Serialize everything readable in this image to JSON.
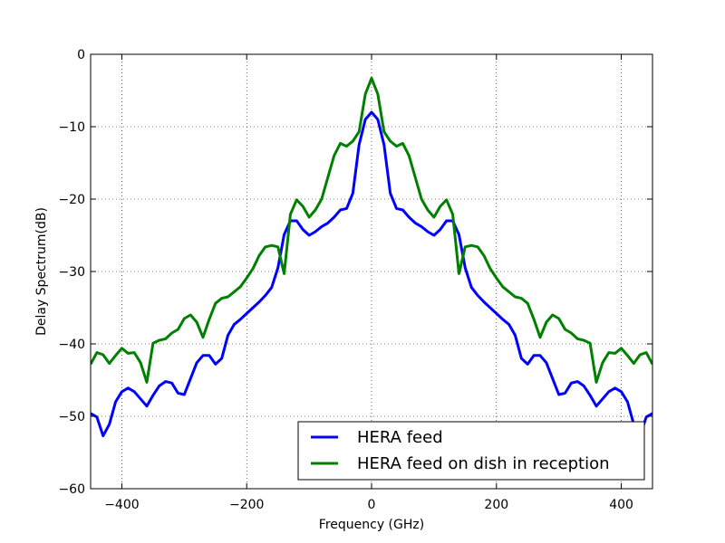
{
  "chart_data": {
    "type": "line",
    "title": "",
    "xlabel": "Frequency (GHz)",
    "ylabel": "Delay Spectrum(dB)",
    "xlim": [
      -450,
      450
    ],
    "ylim": [
      -60,
      0
    ],
    "x_ticks": [
      -400,
      -200,
      0,
      200,
      400
    ],
    "x_tick_labels": [
      "−400",
      "−200",
      "0",
      "200",
      "400"
    ],
    "y_ticks": [
      0,
      -10,
      -20,
      -30,
      -40,
      -50,
      -60
    ],
    "y_tick_labels": [
      "0",
      "−10",
      "−20",
      "−30",
      "−40",
      "−50",
      "−60"
    ],
    "grid": true,
    "legend_position": "bottom-right",
    "series": [
      {
        "name": "HERA feed",
        "color": "#0000ff",
        "x": [
          -450,
          -440,
          -430,
          -420,
          -410,
          -400,
          -390,
          -380,
          -370,
          -360,
          -350,
          -340,
          -330,
          -320,
          -310,
          -300,
          -290,
          -280,
          -270,
          -260,
          -250,
          -240,
          -230,
          -220,
          -210,
          -200,
          -190,
          -180,
          -170,
          -160,
          -150,
          -140,
          -130,
          -120,
          -110,
          -100,
          -90,
          -80,
          -70,
          -60,
          -50,
          -40,
          -30,
          -20,
          -10,
          0,
          10,
          20,
          30,
          40,
          50,
          60,
          70,
          80,
          90,
          100,
          110,
          120,
          130,
          140,
          150,
          160,
          170,
          180,
          190,
          200,
          210,
          220,
          230,
          240,
          250,
          260,
          270,
          280,
          290,
          300,
          310,
          320,
          330,
          340,
          350,
          360,
          370,
          380,
          390,
          400,
          410,
          420,
          430,
          440,
          450
        ],
        "y": [
          -49.6,
          -50.1,
          -52.7,
          -51.1,
          -48,
          -46.6,
          -46.1,
          -46.6,
          -47.6,
          -48.6,
          -47.1,
          -45.8,
          -45.2,
          -45.4,
          -46.8,
          -47,
          -44.8,
          -42.6,
          -41.6,
          -41.6,
          -42.8,
          -42,
          -38.8,
          -37.3,
          -36.6,
          -35.8,
          -35,
          -34.2,
          -33.3,
          -32.2,
          -29.5,
          -24.9,
          -23,
          -23,
          -24.2,
          -25,
          -24.5,
          -23.8,
          -23.3,
          -22.5,
          -21.5,
          -21.3,
          -19.2,
          -12.5,
          -9,
          -8,
          -9,
          -12.5,
          -19.2,
          -21.3,
          -21.5,
          -22.5,
          -23.3,
          -23.8,
          -24.5,
          -25,
          -24.2,
          -23,
          -23,
          -24.9,
          -29.5,
          -32.2,
          -33.3,
          -34.2,
          -35,
          -35.8,
          -36.6,
          -37.3,
          -38.8,
          -42,
          -42.8,
          -41.6,
          -41.6,
          -42.6,
          -44.8,
          -47,
          -46.8,
          -45.4,
          -45.2,
          -45.8,
          -47.1,
          -48.6,
          -47.6,
          -46.6,
          -46.1,
          -46.6,
          -48,
          -51.1,
          -52.7,
          -50.1,
          -49.6
        ]
      },
      {
        "name": "HERA feed on dish in reception",
        "color": "#008000",
        "x": [
          -450,
          -440,
          -430,
          -420,
          -410,
          -400,
          -390,
          -380,
          -370,
          -360,
          -350,
          -340,
          -330,
          -320,
          -310,
          -300,
          -290,
          -280,
          -270,
          -260,
          -250,
          -240,
          -230,
          -220,
          -210,
          -200,
          -190,
          -180,
          -170,
          -160,
          -150,
          -140,
          -130,
          -120,
          -110,
          -100,
          -90,
          -80,
          -70,
          -60,
          -50,
          -40,
          -30,
          -20,
          -10,
          0,
          10,
          20,
          30,
          40,
          50,
          60,
          70,
          80,
          90,
          100,
          110,
          120,
          130,
          140,
          150,
          160,
          170,
          180,
          190,
          200,
          210,
          220,
          230,
          240,
          250,
          260,
          270,
          280,
          290,
          300,
          310,
          320,
          330,
          340,
          350,
          360,
          370,
          380,
          390,
          400,
          410,
          420,
          430,
          440,
          450
        ],
        "y": [
          -42.8,
          -41.2,
          -41.5,
          -42.7,
          -41.6,
          -40.6,
          -41.3,
          -41.2,
          -42.6,
          -45.3,
          -39.9,
          -39.5,
          -39.3,
          -38.5,
          -38,
          -36.5,
          -36,
          -37,
          -39.1,
          -36.6,
          -34.4,
          -33.7,
          -33.5,
          -32.8,
          -32.1,
          -30.9,
          -29.6,
          -27.8,
          -26.6,
          -26.4,
          -26.6,
          -30.3,
          -22.1,
          -20.1,
          -21,
          -22.5,
          -21.5,
          -20,
          -17,
          -14,
          -12.3,
          -12.7,
          -12,
          -10.7,
          -5.5,
          -3.3,
          -5.5,
          -10.7,
          -12,
          -12.7,
          -12.3,
          -14,
          -17,
          -20,
          -21.5,
          -22.5,
          -21,
          -20.1,
          -22.1,
          -30.3,
          -26.6,
          -26.4,
          -26.6,
          -27.8,
          -29.6,
          -30.9,
          -32.1,
          -32.8,
          -33.5,
          -33.7,
          -34.4,
          -36.6,
          -39.1,
          -37,
          -36,
          -36.5,
          -38,
          -38.5,
          -39.3,
          -39.5,
          -39.9,
          -45.3,
          -42.6,
          -41.2,
          -41.3,
          -40.6,
          -41.6,
          -42.7,
          -41.5,
          -41.2,
          -42.8
        ]
      }
    ]
  }
}
